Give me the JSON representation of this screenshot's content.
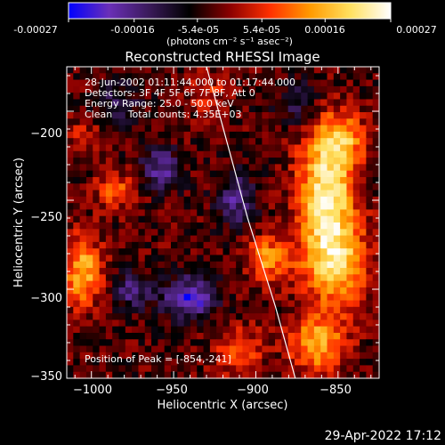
{
  "footer_timestamp": "29-Apr-2022 17:12",
  "colorbar": {
    "ticks": [
      "-0.00027",
      "-0.00016",
      "-5.4e-05",
      "5.4e-05",
      "0.00016",
      "0.00027"
    ],
    "units_line": "(photons cm⁻² s⁻¹ asec⁻²)"
  },
  "chart_data": {
    "type": "heatmap",
    "title": "Reconstructed RHESSI Image",
    "xlabel": "Heliocentric X (arcsec)",
    "ylabel": "Heliocentric Y (arcsec)",
    "xlim": [
      -1015,
      -825
    ],
    "ylim": [
      -350,
      -175
    ],
    "x_ticks": [
      -1000,
      -950,
      -900,
      -850
    ],
    "y_ticks": [
      -200,
      -250,
      -300,
      -350
    ],
    "x_tick_labels": [
      "−1000",
      "−950",
      "−900",
      "−850"
    ],
    "y_tick_labels": [
      "−200",
      "−250",
      "−300",
      "−350"
    ],
    "value_range": [
      -0.00027,
      0.00027
    ],
    "colormap": [
      "#0000ff",
      "#6a2fb8",
      "#3a1a5a",
      "#000000",
      "#8a0000",
      "#ff3000",
      "#ff9a00",
      "#ffe060",
      "#ffffff"
    ],
    "annotations": [
      "28-Jun-2002 01:11:44.000 to 01:17:44.000",
      "Detectors: 3F 4F 5F 6F 7F 8F, Att 0",
      "Energy Range: 25.0 - 50.0 keV",
      "Clean     Total counts: 4.35E+03"
    ],
    "peak_label": "Position of Peak = [-854,-241]",
    "peak": [
      -854,
      -241
    ],
    "limb_curve": [
      [
        -930,
        -175
      ],
      [
        -905,
        -260
      ],
      [
        -888,
        -310
      ],
      [
        -876,
        -350
      ]
    ],
    "emission_blobs": [
      {
        "x": -857,
        "y": -245,
        "sx": 12,
        "sy": 22,
        "a": 1.0
      },
      {
        "x": -852,
        "y": -285,
        "sx": 14,
        "sy": 16,
        "a": 0.8
      },
      {
        "x": -848,
        "y": -215,
        "sx": 10,
        "sy": 10,
        "a": 0.6
      },
      {
        "x": -862,
        "y": -330,
        "sx": 12,
        "sy": 12,
        "a": 0.7
      },
      {
        "x": -893,
        "y": -283,
        "sx": 9,
        "sy": 9,
        "a": 0.6
      },
      {
        "x": -1005,
        "y": -290,
        "sx": 8,
        "sy": 14,
        "a": 0.7
      },
      {
        "x": -985,
        "y": -245,
        "sx": 9,
        "sy": 7,
        "a": 0.45
      },
      {
        "x": -910,
        "y": -335,
        "sx": 10,
        "sy": 10,
        "a": 0.45
      },
      {
        "x": -930,
        "y": -190,
        "sx": 8,
        "sy": 8,
        "a": 0.3
      },
      {
        "x": -1005,
        "y": -215,
        "sx": 6,
        "sy": 8,
        "a": 0.3
      },
      {
        "x": -958,
        "y": -232,
        "sx": 8,
        "sy": 8,
        "a": -0.55
      },
      {
        "x": -940,
        "y": -305,
        "sx": 11,
        "sy": 8,
        "a": -0.75
      },
      {
        "x": -975,
        "y": -300,
        "sx": 8,
        "sy": 7,
        "a": -0.5
      },
      {
        "x": -912,
        "y": -250,
        "sx": 8,
        "sy": 10,
        "a": -0.5
      },
      {
        "x": -875,
        "y": -195,
        "sx": 8,
        "sy": 8,
        "a": -0.35
      },
      {
        "x": -985,
        "y": -195,
        "sx": 10,
        "sy": 8,
        "a": -0.3
      }
    ]
  }
}
